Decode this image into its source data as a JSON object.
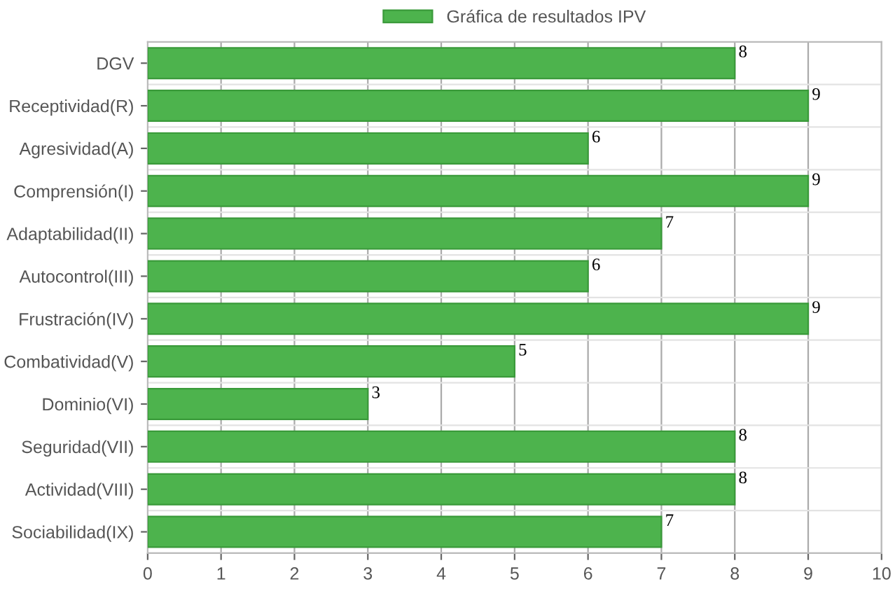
{
  "chart_data": {
    "type": "bar",
    "orientation": "horizontal",
    "categories": [
      "DGV",
      "Receptividad(R)",
      "Agresividad(A)",
      "Comprensión(I)",
      "Adaptabilidad(II)",
      "Autocontrol(III)",
      "Frustración(IV)",
      "Combatividad(V)",
      "Dominio(VI)",
      "Seguridad(VII)",
      "Actividad(VIII)",
      "Sociabilidad(IX)"
    ],
    "series": [
      {
        "name": "Gráfica de resultados IPV",
        "color": "#4db34d",
        "values": [
          8,
          9,
          6,
          9,
          7,
          6,
          9,
          5,
          3,
          8,
          8,
          7
        ]
      }
    ],
    "xlim": [
      0,
      10
    ],
    "xticks": [
      0,
      1,
      2,
      3,
      4,
      5,
      6,
      7,
      8,
      9,
      10
    ],
    "grid": true,
    "legend": "top",
    "data_labels": true
  }
}
